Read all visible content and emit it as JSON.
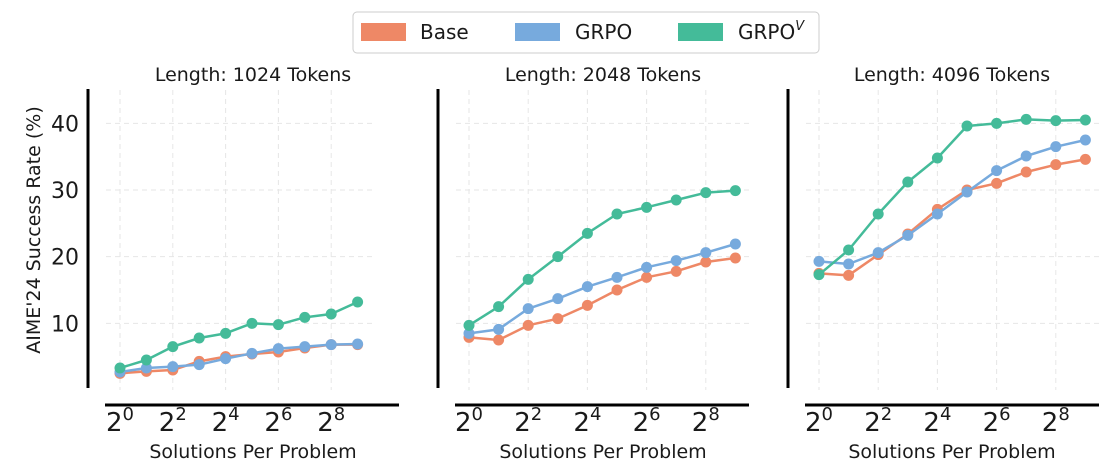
{
  "ylabel": "AIME'24 Success Rate (%)",
  "legend": {
    "placement": "top-center",
    "items": [
      {
        "label": "Base",
        "sup": "",
        "color": "#ee8866"
      },
      {
        "label": "GRPO",
        "sup": "",
        "color": "#77aadd"
      },
      {
        "label": "GRPO",
        "sup": "V",
        "color": "#44bb99"
      }
    ]
  },
  "chart_data": [
    {
      "type": "line",
      "title": "Length: 1024 Tokens",
      "xlabel": "Solutions Per Problem",
      "ylabel": "AIME'24 Success Rate (%)",
      "x_exponents": [
        0,
        1,
        2,
        3,
        4,
        5,
        6,
        7,
        8,
        9
      ],
      "x_ticks": [
        {
          "base": "2",
          "exp": "0"
        },
        {
          "base": "2",
          "exp": "2"
        },
        {
          "base": "2",
          "exp": "4"
        },
        {
          "base": "2",
          "exp": "6"
        },
        {
          "base": "2",
          "exp": "8"
        }
      ],
      "y_ticks": [
        "10",
        "20",
        "30",
        "40"
      ],
      "ylim": [
        0,
        45
      ],
      "grid": true,
      "series": [
        {
          "name": "Base",
          "color": "#ee8866",
          "values": [
            2.5,
            2.8,
            3.0,
            4.3,
            5.0,
            5.4,
            5.7,
            6.3,
            6.8,
            6.8
          ]
        },
        {
          "name": "GRPO",
          "color": "#77aadd",
          "values": [
            2.7,
            3.3,
            3.5,
            3.8,
            4.7,
            5.5,
            6.2,
            6.5,
            6.8,
            6.9
          ]
        },
        {
          "name": "GRPOV",
          "color": "#44bb99",
          "values": [
            3.3,
            4.5,
            6.5,
            7.8,
            8.5,
            10.0,
            9.8,
            10.9,
            11.4,
            13.2
          ]
        }
      ]
    },
    {
      "type": "line",
      "title": "Length: 2048 Tokens",
      "xlabel": "Solutions Per Problem",
      "x_exponents": [
        0,
        1,
        2,
        3,
        4,
        5,
        6,
        7,
        8,
        9
      ],
      "x_ticks": [
        {
          "base": "2",
          "exp": "0"
        },
        {
          "base": "2",
          "exp": "2"
        },
        {
          "base": "2",
          "exp": "4"
        },
        {
          "base": "2",
          "exp": "6"
        },
        {
          "base": "2",
          "exp": "8"
        }
      ],
      "ylim": [
        0,
        45
      ],
      "grid": true,
      "series": [
        {
          "name": "Base",
          "color": "#ee8866",
          "values": [
            7.9,
            7.5,
            9.7,
            10.7,
            12.7,
            15.0,
            16.9,
            17.8,
            19.2,
            19.8
          ]
        },
        {
          "name": "GRPO",
          "color": "#77aadd",
          "values": [
            8.5,
            9.1,
            12.2,
            13.7,
            15.5,
            16.9,
            18.4,
            19.4,
            20.6,
            21.9
          ]
        },
        {
          "name": "GRPOV",
          "color": "#44bb99",
          "values": [
            9.7,
            12.5,
            16.6,
            20.0,
            23.5,
            26.4,
            27.4,
            28.5,
            29.6,
            29.9
          ]
        }
      ]
    },
    {
      "type": "line",
      "title": "Length: 4096 Tokens",
      "xlabel": "Solutions Per Problem",
      "x_exponents": [
        0,
        1,
        2,
        3,
        4,
        5,
        6,
        7,
        8,
        9
      ],
      "x_ticks": [
        {
          "base": "2",
          "exp": "0"
        },
        {
          "base": "2",
          "exp": "2"
        },
        {
          "base": "2",
          "exp": "4"
        },
        {
          "base": "2",
          "exp": "6"
        },
        {
          "base": "2",
          "exp": "8"
        }
      ],
      "ylim": [
        0,
        45
      ],
      "grid": true,
      "series": [
        {
          "name": "Base",
          "color": "#ee8866",
          "values": [
            17.5,
            17.2,
            20.3,
            23.4,
            27.1,
            30.0,
            31.0,
            32.7,
            33.8,
            34.6
          ]
        },
        {
          "name": "GRPO",
          "color": "#77aadd",
          "values": [
            19.3,
            18.9,
            20.6,
            23.2,
            26.4,
            29.7,
            32.9,
            35.1,
            36.5,
            37.5
          ]
        },
        {
          "name": "GRPOV",
          "color": "#44bb99",
          "values": [
            17.3,
            21.0,
            26.4,
            31.2,
            34.8,
            39.6,
            40.0,
            40.6,
            40.4,
            40.5
          ]
        }
      ]
    }
  ]
}
